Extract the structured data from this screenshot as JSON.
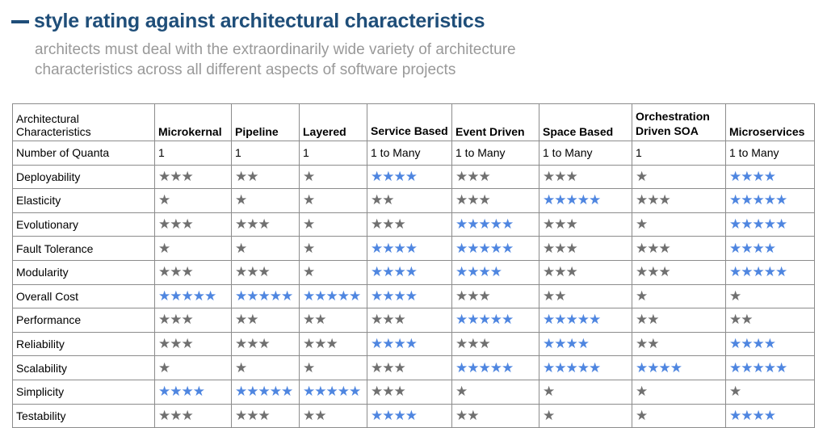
{
  "title": "style rating against architectural characteristics",
  "subtitle_line1": "architects must deal with the extraordinarily wide variety of architecture",
  "subtitle_line2": "characteristics across all different aspects of software projects",
  "colors": {
    "title": "#1f4e79",
    "subtitle": "#999999",
    "star_gray": "#707070",
    "star_blue": "#4f86e0"
  },
  "icons": {
    "rating": "star-icon"
  },
  "header": {
    "col0_line1": "Architectural",
    "col0_line2": "Characteristics",
    "columns": [
      "Microkernal",
      "Pipeline",
      "Layered",
      "Service Based",
      "Event Driven",
      "Space Based",
      "Orchestration Driven SOA",
      "Microservices"
    ]
  },
  "quanta": {
    "label": "Number of Quanta",
    "values": [
      "1",
      "1",
      "1",
      "1 to Many",
      "1 to Many",
      "1 to Many",
      "1",
      "1 to Many"
    ]
  },
  "rows": [
    {
      "label": "Deployability",
      "ratings": [
        3,
        2,
        1,
        4,
        3,
        3,
        1,
        4
      ],
      "highlight": [
        false,
        false,
        false,
        true,
        false,
        false,
        false,
        true
      ]
    },
    {
      "label": "Elasticity",
      "ratings": [
        1,
        1,
        1,
        2,
        3,
        5,
        3,
        5
      ],
      "highlight": [
        false,
        false,
        false,
        false,
        false,
        true,
        false,
        true
      ]
    },
    {
      "label": "Evolutionary",
      "ratings": [
        3,
        3,
        1,
        3,
        5,
        3,
        1,
        5
      ],
      "highlight": [
        false,
        false,
        false,
        false,
        true,
        false,
        false,
        true
      ]
    },
    {
      "label": "Fault Tolerance",
      "ratings": [
        1,
        1,
        1,
        4,
        5,
        3,
        3,
        4
      ],
      "highlight": [
        false,
        false,
        false,
        true,
        true,
        false,
        false,
        true
      ]
    },
    {
      "label": "Modularity",
      "ratings": [
        3,
        3,
        1,
        4,
        4,
        3,
        3,
        5
      ],
      "highlight": [
        false,
        false,
        false,
        true,
        true,
        false,
        false,
        true
      ]
    },
    {
      "label": "Overall Cost",
      "ratings": [
        5,
        5,
        5,
        4,
        3,
        2,
        1,
        1
      ],
      "highlight": [
        true,
        true,
        true,
        true,
        false,
        false,
        false,
        false
      ]
    },
    {
      "label": "Performance",
      "ratings": [
        3,
        2,
        2,
        3,
        5,
        5,
        2,
        2
      ],
      "highlight": [
        false,
        false,
        false,
        false,
        true,
        true,
        false,
        false
      ]
    },
    {
      "label": "Reliability",
      "ratings": [
        3,
        3,
        3,
        4,
        3,
        4,
        2,
        4
      ],
      "highlight": [
        false,
        false,
        false,
        true,
        false,
        true,
        false,
        true
      ]
    },
    {
      "label": "Scalability",
      "ratings": [
        1,
        1,
        1,
        3,
        5,
        5,
        4,
        5
      ],
      "highlight": [
        false,
        false,
        false,
        false,
        true,
        true,
        true,
        true
      ]
    },
    {
      "label": "Simplicity",
      "ratings": [
        4,
        5,
        5,
        3,
        1,
        1,
        1,
        1
      ],
      "highlight": [
        true,
        true,
        true,
        false,
        false,
        false,
        false,
        false
      ]
    },
    {
      "label": "Testability",
      "ratings": [
        3,
        3,
        2,
        4,
        2,
        1,
        1,
        4
      ],
      "highlight": [
        false,
        false,
        false,
        true,
        false,
        false,
        false,
        true
      ]
    }
  ]
}
